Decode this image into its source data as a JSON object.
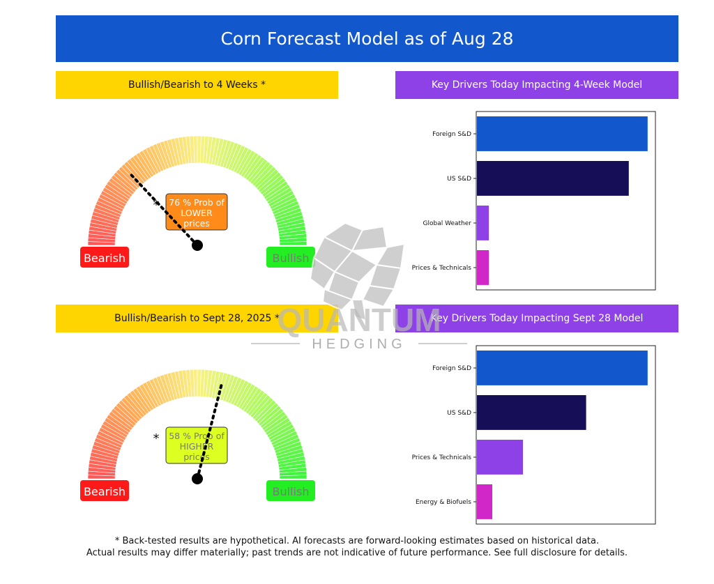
{
  "title": "Corn Forecast Model as of Aug 28",
  "sections": {
    "gauge_4wk_title": "Bullish/Bearish to 4 Weeks *",
    "drivers_4wk_title": "Key Drivers Today Impacting 4-Week Model",
    "gauge_sep_title": "Bullish/Bearish to Sept 28, 2025 *",
    "drivers_sep_title": "Key Drivers Today Impacting Sept 28 Model"
  },
  "watermark": {
    "line1": "QUANTUM",
    "line2": "HEDGING"
  },
  "footer": {
    "line1": "* Back-tested results are hypothetical. AI forecasts are forward-looking estimates based on historical data.",
    "line2": "Actual results may differ materially; past trends are not indicative of future performance. See full disclosure for details."
  },
  "colors": {
    "banner": "#1257cc",
    "yellow_header": "#ffd500",
    "purple_header": "#8e41e6",
    "bearish": "#ff1a1a",
    "bullish": "#22ee22"
  },
  "chart_data": [
    {
      "type": "gauge",
      "bearish_label": "Bearish",
      "bullish_label": "Bullish",
      "asterisk": "*",
      "needle_fraction": 0.26,
      "probability_pct": 76,
      "direction": "LOWER",
      "box_line1": "76 % Prob of",
      "box_line2": "LOWER",
      "box_line3": "prices",
      "box_color": "#ff8c1a",
      "box_text_color": "#ffffff"
    },
    {
      "type": "bar",
      "orientation": "horizontal",
      "categories": [
        "Foreign S&D",
        "US S&D",
        "Global Weather",
        "Prices & Technicals"
      ],
      "values": [
        1.0,
        0.89,
        0.07,
        0.07
      ],
      "colors": [
        "#1257cc",
        "#160f57",
        "#8e41e6",
        "#d126c8"
      ],
      "xlim": [
        0,
        1.05
      ]
    },
    {
      "type": "gauge",
      "bearish_label": "Bearish",
      "bullish_label": "Bullish",
      "asterisk": "*",
      "needle_fraction": 0.58,
      "probability_pct": 58,
      "direction": "HIGHER",
      "box_line1": "58 % Prob of",
      "box_line2": "HIGHER",
      "box_line3": "prices",
      "box_color": "#ddff22",
      "box_text_color": "#777777"
    },
    {
      "type": "bar",
      "orientation": "horizontal",
      "categories": [
        "Foreign S&D",
        "US S&D",
        "Prices & Technicals",
        "Energy & Biofuels"
      ],
      "values": [
        1.0,
        0.64,
        0.27,
        0.09
      ],
      "colors": [
        "#1257cc",
        "#160f57",
        "#8e41e6",
        "#d126c8"
      ],
      "xlim": [
        0,
        1.05
      ]
    }
  ]
}
